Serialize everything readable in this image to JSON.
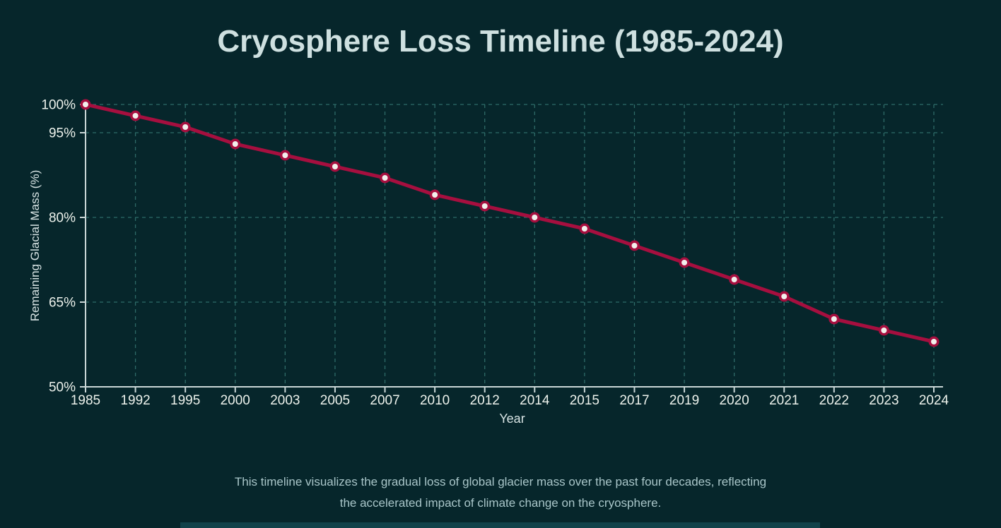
{
  "page": {
    "title": "Cryosphere Loss Timeline (1985-2024)",
    "caption": {
      "line1": "This timeline visualizes the gradual loss of global glacier mass over the past four decades, reflecting",
      "line2": "the accelerated impact of climate change on the cryosphere."
    }
  },
  "chart_data": {
    "type": "line",
    "title": "Cryosphere Loss Timeline (1985-2024)",
    "categories": [
      "1985",
      "1992",
      "1995",
      "2000",
      "2003",
      "2005",
      "2007",
      "2010",
      "2012",
      "2014",
      "2015",
      "2017",
      "2019",
      "2020",
      "2021",
      "2022",
      "2023",
      "2024"
    ],
    "series": [
      {
        "name": "Remaining Glacial Mass",
        "values": [
          100,
          98,
          96,
          93,
          91,
          89,
          87,
          84,
          82,
          80,
          78,
          75,
          72,
          69,
          66,
          62,
          60,
          58
        ]
      }
    ],
    "xlabel": "Year",
    "ylabel": "Remaining Glacial Mass (%)",
    "ylim": [
      50,
      100
    ],
    "yticks": [
      100,
      95,
      80,
      65,
      50
    ],
    "grid": "dashed-both-axes",
    "legend": "none",
    "marker": "circle-ring",
    "colors": {
      "background": "#06262b",
      "line": "#a60f3f",
      "marker_fill": "#f2efec",
      "grid": "#2e6b68",
      "axis": "#c9d6d6",
      "tick_label": "#edf2ec",
      "axis_title": "#d8e4e4",
      "title": "#cee0e0",
      "caption": "#a9c6c9",
      "bottom_bar": "#11424a"
    }
  }
}
